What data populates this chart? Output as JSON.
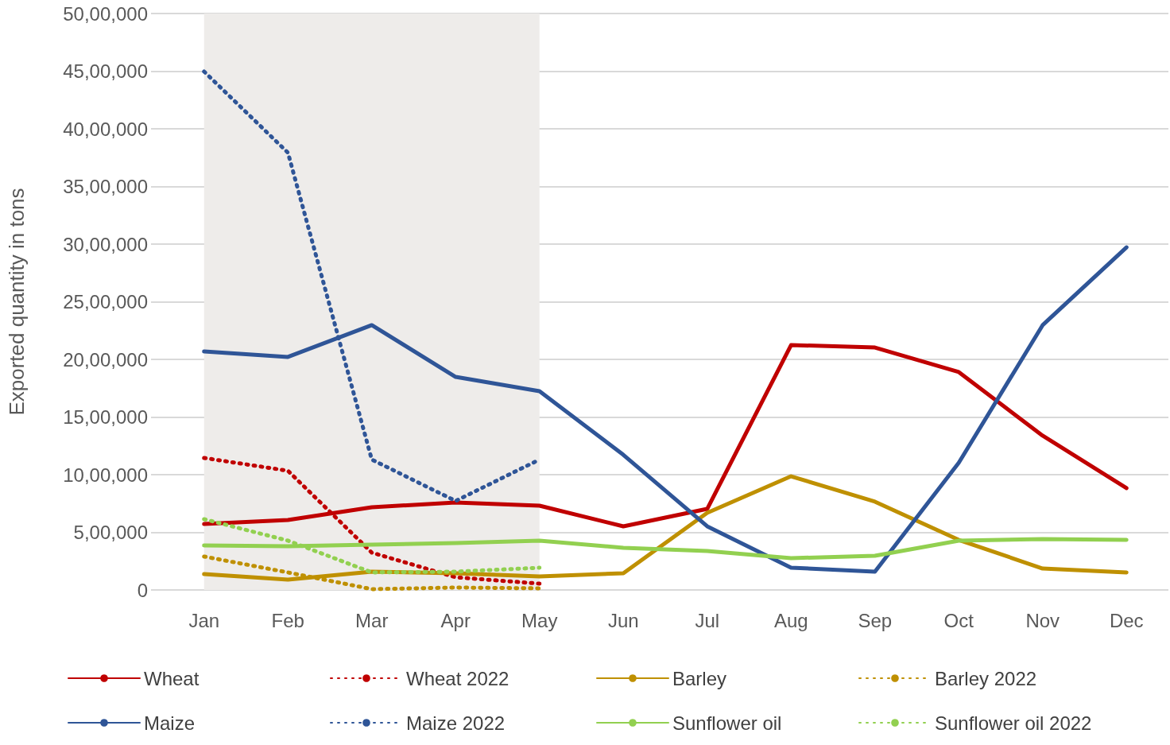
{
  "chart_data": {
    "type": "line",
    "ylabel": "Exported quantity in tons",
    "categories": [
      "Jan",
      "Feb",
      "Mar",
      "Apr",
      "May",
      "Jun",
      "Jul",
      "Aug",
      "Sep",
      "Oct",
      "Nov",
      "Dec"
    ],
    "series": [
      {
        "name": "Wheat",
        "color": "#c00000",
        "line_style": "solid",
        "values": [
          572000,
          607000,
          717000,
          759000,
          731000,
          552000,
          703000,
          2124000,
          2103000,
          1890000,
          1338000,
          883000
        ]
      },
      {
        "name": "Wheat 2022",
        "color": "#c00000",
        "line_style": "dotted",
        "values": [
          1145000,
          1034000,
          324000,
          110000,
          55000,
          null,
          null,
          null,
          null,
          null,
          null,
          null
        ]
      },
      {
        "name": "Barley",
        "color": "#bf9000",
        "line_style": "solid",
        "values": [
          138000,
          90000,
          159000,
          145000,
          117000,
          145000,
          669000,
          986000,
          766000,
          434000,
          186000,
          152000
        ]
      },
      {
        "name": "Barley 2022",
        "color": "#bf9000",
        "line_style": "dotted",
        "values": [
          290000,
          152000,
          7000,
          21000,
          14000,
          null,
          null,
          null,
          null,
          null,
          null,
          null
        ]
      },
      {
        "name": "Maize",
        "color": "#2f5597",
        "line_style": "solid",
        "values": [
          2069000,
          2021000,
          2297000,
          1848000,
          1724000,
          1172000,
          552000,
          193000,
          159000,
          1103000,
          2297000,
          2972000
        ]
      },
      {
        "name": "Maize 2022",
        "color": "#2f5597",
        "line_style": "dotted",
        "values": [
          4497000,
          3793000,
          1131000,
          772000,
          1131000,
          null,
          null,
          null,
          null,
          null,
          null,
          null
        ]
      },
      {
        "name": "Sunflower oil",
        "color": "#92d050",
        "line_style": "solid",
        "values": [
          386000,
          379000,
          393000,
          407000,
          428000,
          366000,
          338000,
          276000,
          297000,
          428000,
          441000,
          434000
        ]
      },
      {
        "name": "Sunflower oil 2022",
        "color": "#92d050",
        "line_style": "dotted",
        "values": [
          614000,
          428000,
          152000,
          159000,
          193000,
          null,
          null,
          null,
          null,
          null,
          null,
          null
        ]
      }
    ],
    "ylim": [
      0,
      5000000
    ],
    "yticks": [
      0,
      {
        "value": 500000,
        "label": "5,00,000"
      },
      {
        "value": 1000000,
        "label": "10,00,000"
      },
      {
        "value": 1500000,
        "label": "15,00,000"
      },
      {
        "value": 2000000,
        "label": "20,00,000"
      },
      {
        "value": 2500000,
        "label": "25,00,000"
      },
      {
        "value": 3000000,
        "label": "30,00,000"
      },
      {
        "value": 3500000,
        "label": "35,00,000"
      },
      {
        "value": 4000000,
        "label": "40,00,000"
      },
      {
        "value": 4500000,
        "label": "45,00,000"
      },
      {
        "value": 5000000,
        "label": "50,00,000"
      }
    ],
    "bands": [
      {
        "axis": "x",
        "from": "Jan",
        "to": "May",
        "color": "#eeecea"
      }
    ],
    "grid": "y",
    "legend": "bottom",
    "marker": "none"
  }
}
